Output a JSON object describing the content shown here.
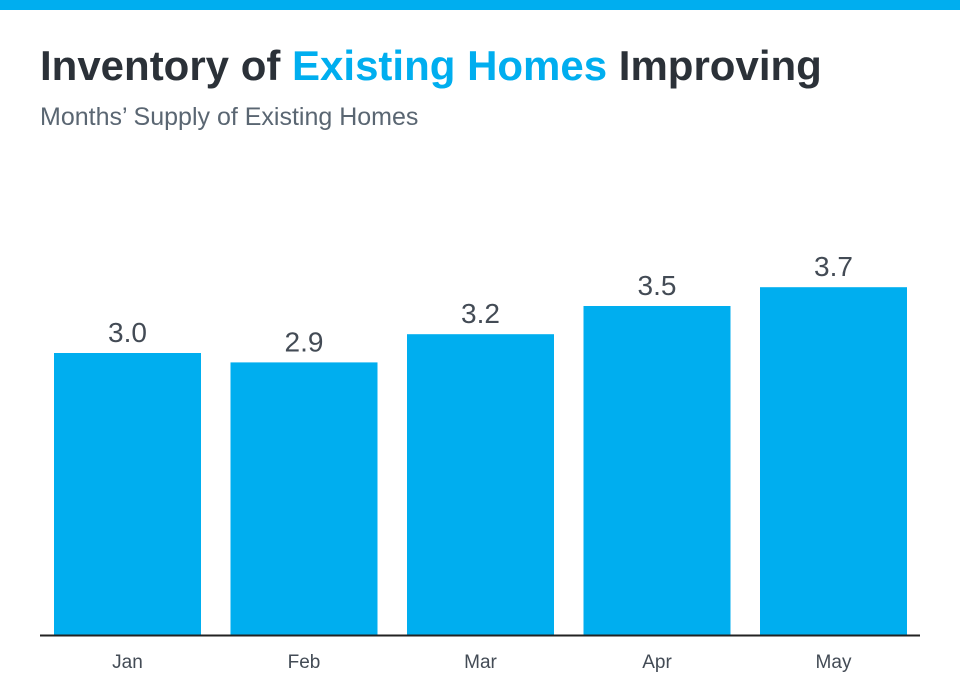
{
  "colors": {
    "accent": "#00aeef",
    "title_dark": "#2b3138",
    "subtitle": "#5a6672",
    "value_label": "#434b55",
    "tick_label": "#434b55",
    "axis_line": "#222222"
  },
  "header": {
    "title_part1": "Inventory of ",
    "title_highlight": "Existing Homes",
    "title_part2": " Improving",
    "subtitle": "Months’ Supply of Existing Homes"
  },
  "chart_data": {
    "type": "bar",
    "title": "Inventory of Existing Homes Improving",
    "subtitle": "Months’ Supply of Existing Homes",
    "categories": [
      "Jan",
      "Feb",
      "Mar",
      "Apr",
      "May"
    ],
    "values": [
      3.0,
      2.9,
      3.2,
      3.5,
      3.7
    ],
    "value_labels": [
      "3.0",
      "2.9",
      "3.2",
      "3.5",
      "3.7"
    ],
    "xlabel": "",
    "ylabel": "",
    "ylim": [
      0,
      5
    ],
    "grid": false,
    "legend": "none"
  }
}
